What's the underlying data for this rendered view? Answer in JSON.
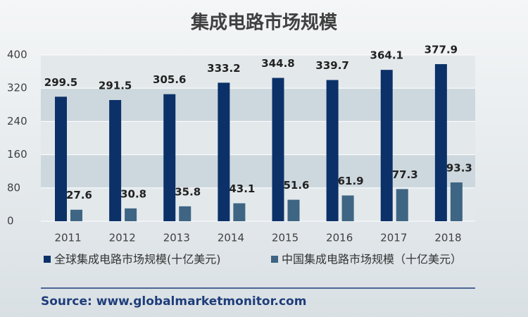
{
  "chart_data": {
    "type": "bar",
    "title": "集成电路市场规模",
    "categories": [
      "2011",
      "2012",
      "2013",
      "2014",
      "2015",
      "2016",
      "2017",
      "2018"
    ],
    "series": [
      {
        "name": "全球集成电路市场规模(十亿美元)",
        "color": "#0b3168",
        "values": [
          299.5,
          291.5,
          305.6,
          333.2,
          344.8,
          339.7,
          364.1,
          377.9
        ]
      },
      {
        "name": "中国集成电路市场规模（十亿美元）",
        "color": "#3e6583",
        "values": [
          27.6,
          30.8,
          35.8,
          43.1,
          51.6,
          61.9,
          77.3,
          93.3
        ]
      }
    ],
    "ylim": [
      0,
      400
    ],
    "yticks": [
      0,
      80,
      160,
      240,
      320,
      400
    ],
    "grid": true,
    "source": "Source: www.globalmarketmonitor.com"
  }
}
